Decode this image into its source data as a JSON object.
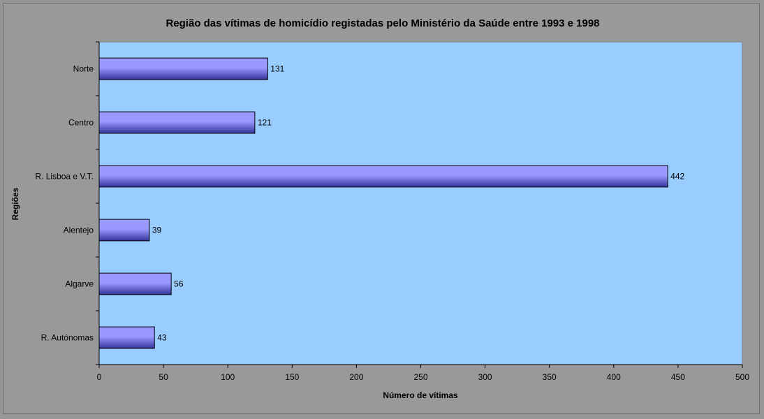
{
  "chart_data": {
    "type": "bar",
    "orientation": "horizontal",
    "title": "Região das vítimas de homicídio registadas pelo Ministério da Saúde entre 1993 e 1998",
    "xlabel": "Número de vítimas",
    "ylabel": "Regiões",
    "categories": [
      "Norte",
      "Centro",
      "R. Lisboa e V.T.",
      "Alentejo",
      "Algarve",
      "R. Autónomas"
    ],
    "values": [
      131,
      121,
      442,
      39,
      56,
      43
    ],
    "xlim": [
      0,
      500
    ],
    "x_ticks": [
      0,
      50,
      100,
      150,
      200,
      250,
      300,
      350,
      400,
      450,
      500
    ],
    "grid": false,
    "legend": "none",
    "colors": {
      "plot_background": "#99CCFF",
      "chart_background": "#999999",
      "bar_light": "#9999FF",
      "bar_dark": "#333399"
    }
  }
}
